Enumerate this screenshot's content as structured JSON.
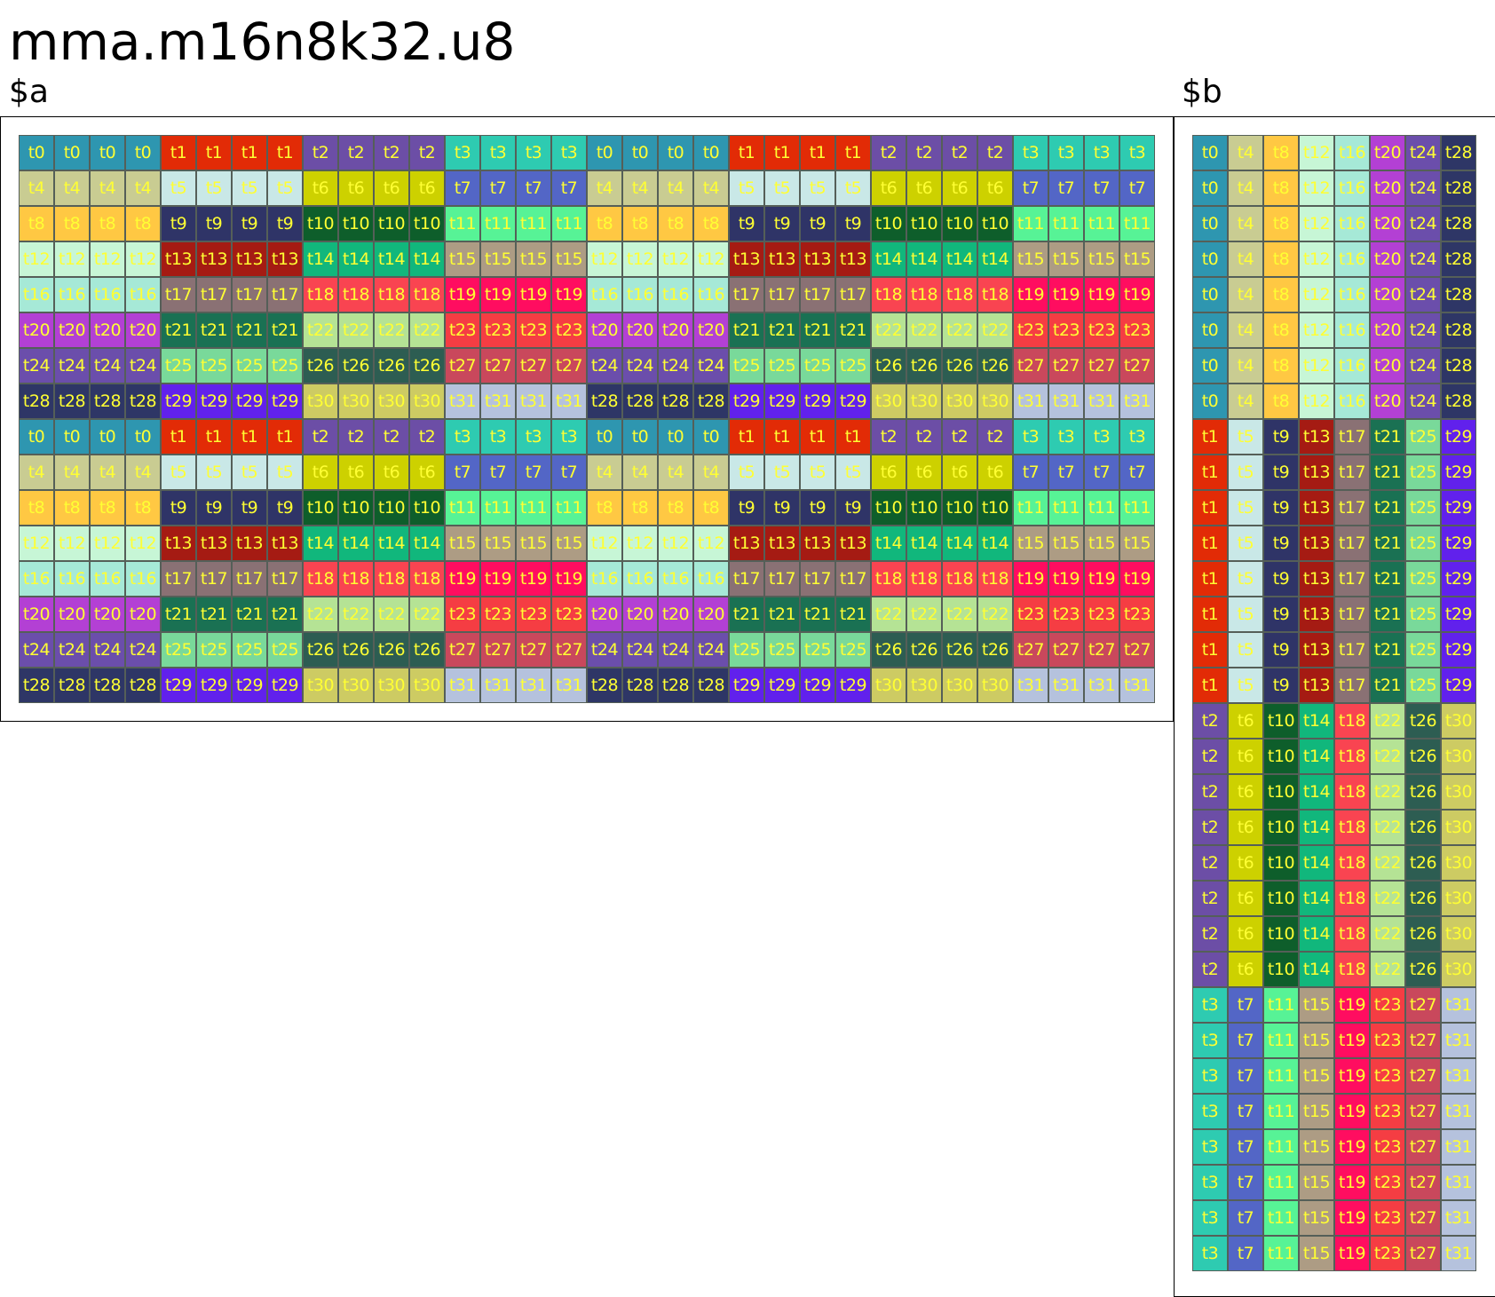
{
  "title": "mma.m16n8k32.u8",
  "labels": {
    "a": "$a",
    "b": "$b"
  },
  "threads": [
    {
      "name": "t0",
      "color": "#2e96b0"
    },
    {
      "name": "t1",
      "color": "#e22b06"
    },
    {
      "name": "t2",
      "color": "#6c4ea6"
    },
    {
      "name": "t3",
      "color": "#2ecbb1"
    },
    {
      "name": "t4",
      "color": "#c9cc92"
    },
    {
      "name": "t5",
      "color": "#c9e8e7"
    },
    {
      "name": "t6",
      "color": "#cdd100"
    },
    {
      "name": "t7",
      "color": "#5366c6"
    },
    {
      "name": "t8",
      "color": "#ffc843"
    },
    {
      "name": "t9",
      "color": "#2f3467"
    },
    {
      "name": "t10",
      "color": "#0e5e2b"
    },
    {
      "name": "t11",
      "color": "#57f396"
    },
    {
      "name": "t12",
      "color": "#c7f6d6"
    },
    {
      "name": "t13",
      "color": "#a51b13"
    },
    {
      "name": "t14",
      "color": "#11b77c"
    },
    {
      "name": "t15",
      "color": "#ad9c84"
    },
    {
      "name": "t16",
      "color": "#a6e9d7"
    },
    {
      "name": "t17",
      "color": "#8a7174"
    },
    {
      "name": "t18",
      "color": "#f94451"
    },
    {
      "name": "t19",
      "color": "#ff0d60"
    },
    {
      "name": "t20",
      "color": "#b340d4"
    },
    {
      "name": "t21",
      "color": "#1a7153"
    },
    {
      "name": "t22",
      "color": "#b5e395"
    },
    {
      "name": "t23",
      "color": "#f53d43"
    },
    {
      "name": "t24",
      "color": "#6b4eab"
    },
    {
      "name": "t25",
      "color": "#79d99a"
    },
    {
      "name": "t26",
      "color": "#2d5d52"
    },
    {
      "name": "t27",
      "color": "#c9485c"
    },
    {
      "name": "t28",
      "color": "#2e3666"
    },
    {
      "name": "t29",
      "color": "#6121ec"
    },
    {
      "name": "t30",
      "color": "#cdcb63"
    },
    {
      "name": "t31",
      "color": "#b5c2dd"
    }
  ],
  "text_colors": {
    "default": "#ffff33"
  },
  "matrix_a": {
    "rows": 16,
    "cols": 32,
    "pattern": "thread = 4*(row%8) + floor((col%16)/4)"
  },
  "matrix_b": {
    "rows": 32,
    "cols": 8,
    "pattern": "thread = 4*col + floor(row/8)"
  }
}
